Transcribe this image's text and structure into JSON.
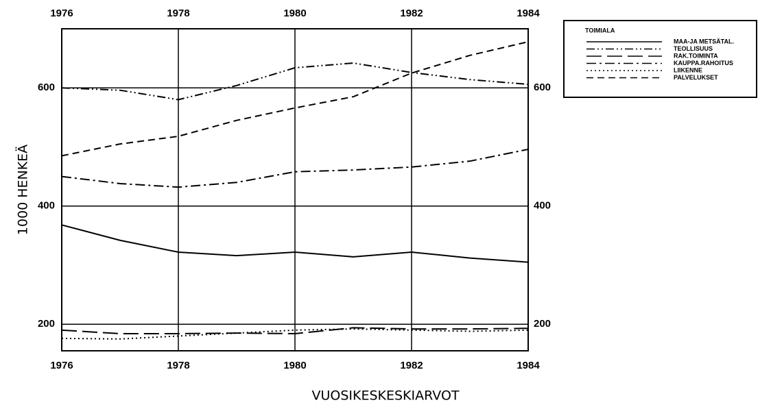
{
  "chart_data": {
    "type": "line",
    "xlabel": "VUOSIKESKESKIARVOT",
    "ylabel": "1000 HENKEÄ",
    "legend_title": "TOIMIALA",
    "legend": "upper right",
    "grid": true,
    "x": [
      1976,
      1977,
      1978,
      1979,
      1980,
      1981,
      1982,
      1983,
      1984
    ],
    "xlim": [
      1976,
      1984
    ],
    "xticks": [
      1976,
      1978,
      1980,
      1982,
      1984
    ],
    "ylim": [
      155,
      700
    ],
    "yticks": [
      200,
      400,
      600
    ],
    "series": [
      {
        "name": "MAA-JA METSÄTAL.",
        "color": "#000000",
        "style": "solid",
        "values": [
          368,
          342,
          322,
          316,
          322,
          314,
          322,
          312,
          305
        ]
      },
      {
        "name": "TEOLLISUUS",
        "color": "#000000",
        "style": "dash-dot-dot",
        "values": [
          600,
          596,
          580,
          604,
          634,
          642,
          626,
          614,
          606
        ]
      },
      {
        "name": "RAK.TOIMINTA",
        "color": "#000000",
        "style": "long-dash",
        "values": [
          190,
          184,
          184,
          185,
          184,
          194,
          192,
          192,
          193
        ]
      },
      {
        "name": "KAUPPA.RAHOITUS",
        "color": "#000000",
        "style": "dash-dot",
        "values": [
          450,
          438,
          432,
          440,
          458,
          461,
          466,
          476,
          496
        ]
      },
      {
        "name": "LIIKENNE",
        "color": "#000000",
        "style": "dotted",
        "values": [
          176,
          175,
          180,
          185,
          190,
          192,
          190,
          188,
          190
        ]
      },
      {
        "name": "PALVELUKSET",
        "color": "#000000",
        "style": "dashed",
        "values": [
          485,
          505,
          518,
          545,
          566,
          585,
          625,
          655,
          678
        ]
      }
    ]
  }
}
